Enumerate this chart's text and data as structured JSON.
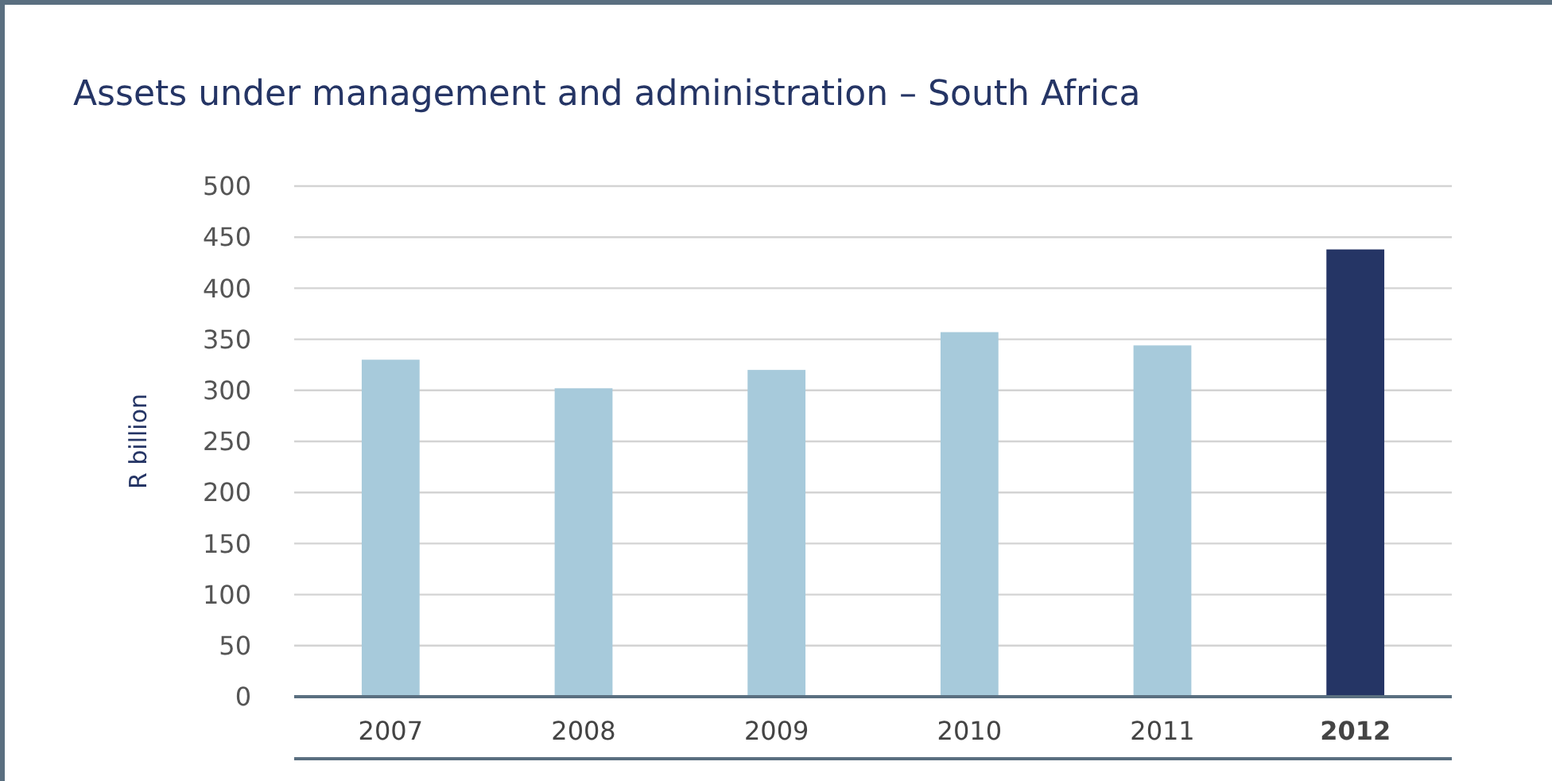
{
  "chart_data": {
    "type": "bar",
    "title": "Assets under management and administration – South Africa",
    "ylabel": "R billion",
    "categories": [
      "2007",
      "2008",
      "2009",
      "2010",
      "2011",
      "2012"
    ],
    "values": [
      330,
      302,
      320,
      357,
      344,
      438
    ],
    "colors": [
      "#a7cadb",
      "#a7cadb",
      "#a7cadb",
      "#a7cadb",
      "#a7cadb",
      "#253565"
    ],
    "ylim": [
      0,
      500
    ],
    "yticks": [
      0,
      50,
      100,
      150,
      200,
      250,
      300,
      350,
      400,
      450,
      500
    ],
    "grid": "y"
  }
}
